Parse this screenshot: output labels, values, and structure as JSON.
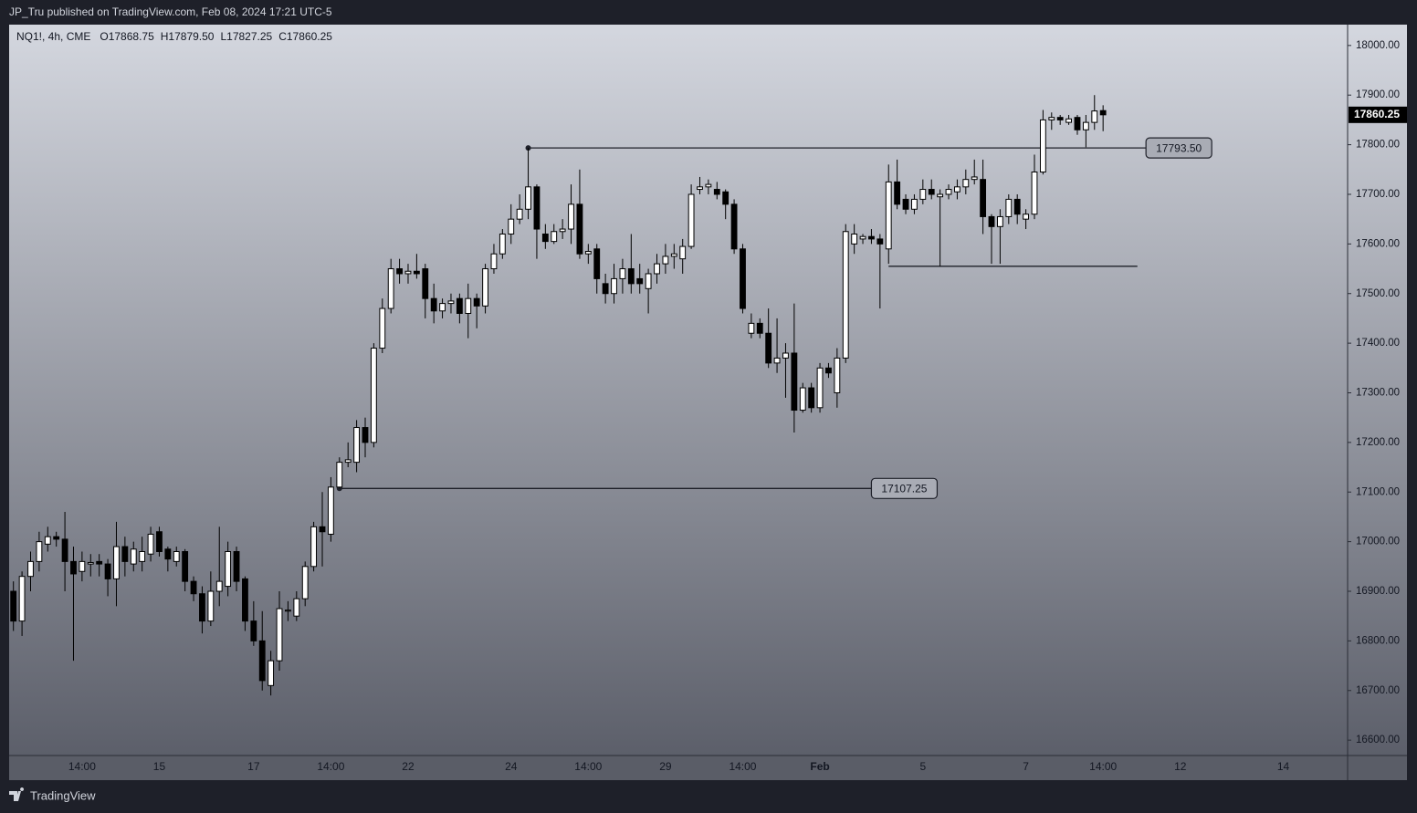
{
  "chart_data": {
    "type": "candlestick",
    "title": "JP_Tru published on TradingView.com, Feb 08, 2024 17:21 UTC-5",
    "symbol_line": "NQ1!, 4h, CME",
    "ohlc_labels": [
      "O17868.75",
      "H17879.50",
      "L17827.25",
      "C17860.25"
    ],
    "footer": "TradingView",
    "up_color": "#ffffff",
    "down_color": "#000000",
    "categories": [
      null,
      null,
      null,
      null,
      null,
      null,
      null,
      null,
      "14:00",
      null,
      null,
      null,
      null,
      null,
      null,
      null,
      null,
      "15",
      null,
      null,
      null,
      null,
      null,
      null,
      null,
      null,
      null,
      null,
      "17",
      null,
      null,
      null,
      null,
      null,
      null,
      null,
      null,
      "14:00",
      null,
      null,
      null,
      null,
      null,
      null,
      null,
      null,
      "22",
      null,
      null,
      null,
      null,
      null,
      null,
      null,
      null,
      null,
      null,
      null,
      "24",
      null,
      null,
      null,
      null,
      null,
      null,
      null,
      null,
      "14:00",
      null,
      null,
      null,
      null,
      null,
      null,
      null,
      null,
      "29",
      null,
      null,
      null,
      null,
      null,
      null,
      null,
      null,
      "14:00",
      null,
      null,
      null,
      null,
      null,
      null,
      null,
      null,
      "Feb",
      null,
      null,
      null,
      null,
      null,
      null,
      null,
      null,
      null,
      null,
      null,
      "5",
      null,
      null,
      null,
      null,
      null,
      null,
      null,
      null,
      null,
      null,
      null,
      "7",
      null,
      null,
      null,
      null,
      null,
      null,
      null,
      null,
      "14:00",
      null,
      null,
      null,
      null,
      null,
      null,
      null,
      null,
      "12",
      null,
      null,
      null,
      null,
      null,
      null,
      null,
      null,
      null,
      null,
      null,
      "14",
      null,
      null,
      null,
      null,
      null,
      null,
      null
    ],
    "open": [
      16900,
      16840,
      16930,
      16960,
      16995,
      17010,
      17005,
      16960,
      16940,
      16955,
      16960,
      16955,
      16925,
      16990,
      16955,
      16960,
      16975,
      17020,
      16985,
      16960,
      16980,
      16920,
      16895,
      16840,
      16900,
      16910,
      16980,
      16925,
      16840,
      16800,
      16710,
      16760,
      16860,
      16850,
      16885,
      16950,
      17030,
      17015,
      17110,
      17160,
      17160,
      17230,
      17200,
      17390,
      17470,
      17550,
      17540,
      17545,
      17550,
      17490,
      17465,
      17480,
      17490,
      17460,
      17490,
      17475,
      17550,
      17580,
      17620,
      17650,
      17670,
      17715,
      17620,
      17605,
      17625,
      17630,
      17680,
      17580,
      17590,
      17520,
      17500,
      17530,
      17550,
      17530,
      17510,
      17540,
      17560,
      17575,
      17570,
      17595,
      17710,
      17715,
      17710,
      17705,
      17680,
      17590,
      17420,
      17440,
      17420,
      17360,
      17370,
      17380,
      17265,
      17310,
      17270,
      17350,
      17300,
      17370,
      17600,
      17610,
      17615,
      17610,
      17590,
      17725,
      17690,
      17670,
      17690,
      17710,
      17695,
      17700,
      17705,
      17715,
      17730,
      17730,
      17655,
      17635,
      17655,
      17690,
      17650,
      17660,
      17745,
      17850,
      17855,
      17845,
      17855,
      17830,
      17845,
      17868.75,
      null,
      null,
      null,
      null,
      null,
      null,
      null,
      null,
      null,
      null,
      null,
      null,
      null,
      null,
      null,
      null,
      null,
      null,
      null,
      null,
      null,
      null,
      null,
      null,
      null,
      null,
      null,
      null
    ],
    "high": [
      16920,
      16940,
      16980,
      17020,
      17030,
      17020,
      17060,
      16990,
      16980,
      16975,
      16975,
      16965,
      17040,
      17010,
      17000,
      17010,
      17030,
      17030,
      16990,
      16990,
      16985,
      16930,
      16910,
      16940,
      17030,
      17000,
      16990,
      16930,
      16880,
      16860,
      16780,
      16900,
      16880,
      16900,
      16960,
      17040,
      17100,
      17130,
      17170,
      17200,
      17245,
      17250,
      17400,
      17490,
      17570,
      17570,
      17560,
      17580,
      17560,
      17520,
      17490,
      17500,
      17500,
      17520,
      17500,
      17560,
      17600,
      17630,
      17680,
      17700,
      17793.5,
      17720,
      17640,
      17640,
      17650,
      17720,
      17750,
      17600,
      17600,
      17540,
      17560,
      17570,
      17620,
      17560,
      17550,
      17580,
      17600,
      17600,
      17610,
      17720,
      17735,
      17730,
      17725,
      17710,
      17690,
      17600,
      17460,
      17450,
      17470,
      17450,
      17400,
      17480,
      17320,
      17320,
      17360,
      17360,
      17390,
      17640,
      17640,
      17620,
      17630,
      17620,
      17760,
      17770,
      17700,
      17700,
      17730,
      17730,
      17710,
      17720,
      17730,
      17750,
      17770,
      17770,
      17660,
      17670,
      17700,
      17700,
      17670,
      17780,
      17870,
      17865,
      17860,
      17860,
      17860,
      17860,
      17900,
      17879.5,
      null,
      null,
      null,
      null,
      null,
      null,
      null,
      null,
      null,
      null,
      null,
      null,
      null,
      null,
      null,
      null,
      null,
      null,
      null,
      null,
      null,
      null,
      null,
      null,
      null,
      null,
      null,
      null
    ],
    "low": [
      16820,
      16810,
      16900,
      16940,
      16980,
      16990,
      16900,
      16760,
      16920,
      16930,
      16930,
      16890,
      16870,
      16930,
      16940,
      16940,
      16960,
      16970,
      16940,
      16950,
      16900,
      16880,
      16815,
      16830,
      16870,
      16890,
      16900,
      16820,
      16790,
      16700,
      16690,
      16740,
      16840,
      16840,
      16870,
      16940,
      16950,
      17000,
      17107.25,
      17150,
      17140,
      17170,
      17190,
      17380,
      17460,
      17520,
      17520,
      17530,
      17450,
      17440,
      17450,
      17460,
      17440,
      17410,
      17430,
      17460,
      17540,
      17570,
      17600,
      17640,
      17650,
      17570,
      17590,
      17600,
      17610,
      17600,
      17570,
      17560,
      17500,
      17480,
      17480,
      17500,
      17500,
      17500,
      17460,
      17520,
      17540,
      17550,
      17540,
      17590,
      17700,
      17700,
      17690,
      17650,
      17580,
      17460,
      17410,
      17410,
      17350,
      17340,
      17290,
      17220,
      17260,
      17260,
      17260,
      17330,
      17270,
      17360,
      17580,
      17600,
      17600,
      17470,
      17560,
      17670,
      17660,
      17660,
      17680,
      17690,
      17555,
      17690,
      17690,
      17700,
      17720,
      17620,
      17560,
      17560,
      17640,
      17640,
      17630,
      17650,
      17740,
      17830,
      17840,
      17840,
      17820,
      17795,
      17830,
      17827.25,
      null,
      null,
      null,
      null,
      null,
      null,
      null,
      null,
      null,
      null,
      null,
      null,
      null,
      null,
      null,
      null,
      null,
      null,
      null,
      null,
      null,
      null,
      null,
      null,
      null,
      null,
      null,
      null
    ],
    "close": [
      16840,
      16930,
      16960,
      17000,
      17010,
      17005,
      16960,
      16935,
      16960,
      16958,
      16955,
      16925,
      16990,
      16960,
      16985,
      16980,
      17015,
      16980,
      16965,
      16980,
      16920,
      16895,
      16840,
      16900,
      16920,
      16980,
      16920,
      16840,
      16800,
      16720,
      16760,
      16865,
      16862,
      16885,
      16950,
      17030,
      17020,
      17110,
      17160,
      17165,
      17230,
      17200,
      17390,
      17470,
      17550,
      17540,
      17545,
      17540,
      17490,
      17465,
      17480,
      17485,
      17460,
      17490,
      17475,
      17550,
      17580,
      17620,
      17650,
      17670,
      17715,
      17630,
      17605,
      17625,
      17630,
      17680,
      17580,
      17585,
      17530,
      17500,
      17530,
      17550,
      17520,
      17520,
      17540,
      17560,
      17575,
      17580,
      17595,
      17700,
      17715,
      17720,
      17700,
      17680,
      17590,
      17470,
      17440,
      17420,
      17360,
      17370,
      17380,
      17265,
      17310,
      17270,
      17350,
      17340,
      17370,
      17625,
      17620,
      17615,
      17610,
      17600,
      17725,
      17680,
      17670,
      17690,
      17710,
      17700,
      17700,
      17710,
      17715,
      17730,
      17735,
      17655,
      17635,
      17655,
      17690,
      17660,
      17660,
      17745,
      17850,
      17855,
      17850,
      17852,
      17830,
      17845,
      17868,
      17860.25,
      null,
      null,
      null,
      null,
      null,
      null,
      null,
      null,
      null,
      null,
      null,
      null,
      null,
      null,
      null,
      null,
      null,
      null,
      null,
      null,
      null,
      null,
      null,
      null,
      null,
      null,
      null,
      null
    ],
    "ylim": [
      16569,
      18042
    ],
    "yticks": [
      {
        "value": 16600,
        "label": "16600.00"
      },
      {
        "value": 16700,
        "label": "16700.00"
      },
      {
        "value": 16800,
        "label": "16800.00"
      },
      {
        "value": 16900,
        "label": "16900.00"
      },
      {
        "value": 17000,
        "label": "17000.00"
      },
      {
        "value": 17100,
        "label": "17100.00"
      },
      {
        "value": 17200,
        "label": "17200.00"
      },
      {
        "value": 17300,
        "label": "17300.00"
      },
      {
        "value": 17400,
        "label": "17400.00"
      },
      {
        "value": 17500,
        "label": "17500.00"
      },
      {
        "value": 17600,
        "label": "17600.00"
      },
      {
        "value": 17700,
        "label": "17700.00"
      },
      {
        "value": 17800,
        "label": "17800.00"
      },
      {
        "value": 17900,
        "label": "17900.00"
      },
      {
        "value": 18000,
        "label": "18000.00"
      }
    ],
    "last_price": {
      "value": 17860.25,
      "label": "17860.25"
    },
    "levels": [
      {
        "value": 17793.5,
        "label": "17793.50",
        "from": 60,
        "to": 132
      },
      {
        "value": 17107.25,
        "label": "17107.25",
        "from": 38,
        "to": 100
      },
      {
        "value": 17555,
        "from": 102,
        "to": 131
      }
    ]
  }
}
